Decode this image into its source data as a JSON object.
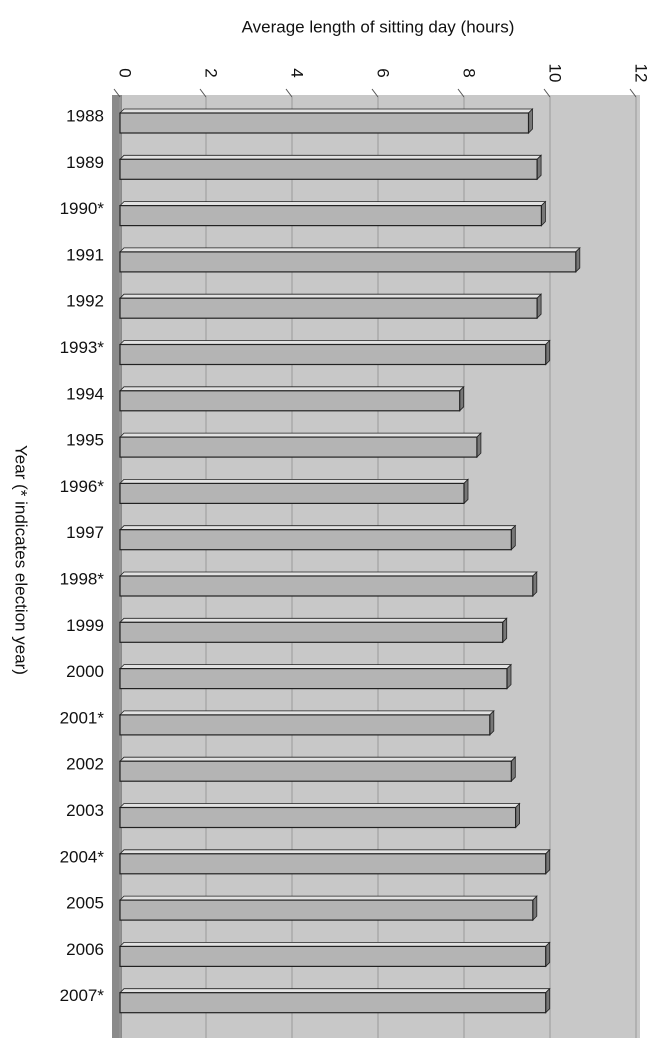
{
  "chart_data": {
    "type": "bar",
    "orientation": "horizontal",
    "x_label": "Average length of sitting day (hours)",
    "y_label": "Year (* indicates election year)",
    "categories": [
      "1988",
      "1989",
      "1990*",
      "1991",
      "1992",
      "1993*",
      "1994",
      "1995",
      "1996*",
      "1997",
      "1998*",
      "1999",
      "2000",
      "2001*",
      "2002",
      "2003",
      "2004*",
      "2005",
      "2006",
      "2007*"
    ],
    "values": [
      9.5,
      9.7,
      9.8,
      10.6,
      9.7,
      9.9,
      7.9,
      8.3,
      8.0,
      9.1,
      9.6,
      8.9,
      9.0,
      8.6,
      9.1,
      9.2,
      9.9,
      9.6,
      9.9,
      9.9
    ],
    "color": "#b4b4b4",
    "xlim": [
      0,
      12
    ],
    "xticks": [
      0,
      2,
      4,
      6,
      8,
      10,
      12
    ],
    "grid": true
  }
}
